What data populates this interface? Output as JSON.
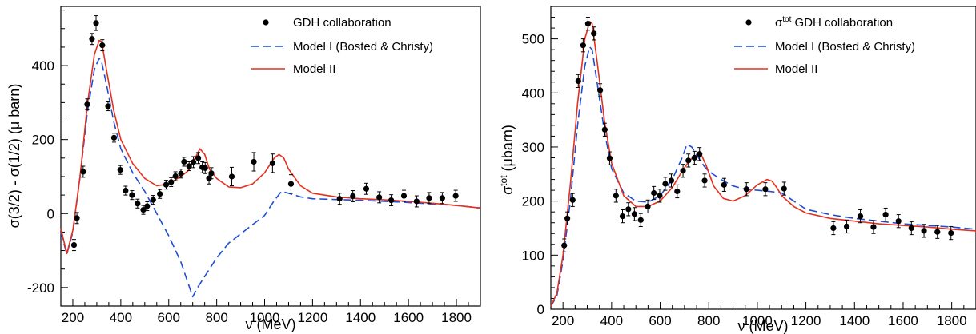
{
  "chart_data": [
    {
      "type": "scatter",
      "title": "",
      "xlabel": "ν (MeV)",
      "ylabel": "σ(3/2) - σ(1/2)  (μ barn)",
      "xlim": [
        150,
        1900
      ],
      "ylim": [
        -250,
        560
      ],
      "xticks": [
        200,
        400,
        600,
        800,
        1000,
        1200,
        1400,
        1600,
        1800
      ],
      "yticks": [
        -200,
        0,
        200,
        400
      ],
      "ytick_labels": [
        "-200",
        "0",
        "200",
        "400"
      ],
      "legend_position": "top-right",
      "points": {
        "name": "GDH collaboration",
        "color": "#000000",
        "x": [
          205,
          217,
          243,
          260,
          280,
          297,
          323,
          347,
          372,
          398,
          420,
          447,
          470,
          494,
          510,
          535,
          563,
          589,
          610,
          628,
          651,
          664,
          685,
          703,
          723,
          740,
          752,
          768,
          778,
          863,
          955,
          1033,
          1110,
          1313,
          1368,
          1424,
          1478,
          1528,
          1581,
          1634,
          1686,
          1741,
          1797
        ],
        "y": [
          -85,
          -12,
          113,
          295,
          472,
          515,
          455,
          290,
          205,
          118,
          62,
          50,
          27,
          10,
          20,
          37,
          53,
          78,
          85,
          101,
          108,
          140,
          128,
          139,
          150,
          125,
          123,
          95,
          109,
          100,
          140,
          136,
          80,
          40,
          47,
          67,
          44,
          36,
          48,
          33,
          42,
          42,
          48
        ],
        "yerr": [
          15,
          15,
          15,
          15,
          15,
          20,
          15,
          12,
          12,
          12,
          12,
          12,
          12,
          12,
          12,
          12,
          12,
          12,
          12,
          12,
          12,
          12,
          12,
          15,
          15,
          15,
          15,
          15,
          15,
          25,
          25,
          25,
          25,
          15,
          15,
          15,
          15,
          15,
          15,
          15,
          15,
          15,
          15
        ]
      },
      "curves": [
        {
          "name": "Model I (Bosted & Christy)",
          "style": "dashed",
          "color": "#1f4fd1",
          "x": [
            150,
            175,
            200,
            230,
            260,
            290,
            310,
            320,
            340,
            370,
            400,
            450,
            500,
            550,
            600,
            650,
            700,
            720,
            760,
            800,
            850,
            900,
            950,
            1000,
            1040,
            1070,
            1100,
            1150,
            1200,
            1300,
            1400,
            1500,
            1600,
            1700,
            1800,
            1900
          ],
          "y": [
            -50,
            -110,
            -50,
            100,
            270,
            390,
            420,
            410,
            350,
            250,
            175,
            110,
            60,
            0,
            -60,
            -130,
            -225,
            -200,
            -160,
            -120,
            -80,
            -55,
            -30,
            -5,
            35,
            60,
            55,
            45,
            40,
            38,
            36,
            33,
            30,
            26,
            22,
            15
          ]
        },
        {
          "name": "Model II",
          "style": "solid",
          "color": "#e3301f",
          "x": [
            150,
            175,
            200,
            230,
            260,
            290,
            310,
            320,
            340,
            370,
            400,
            450,
            500,
            550,
            600,
            650,
            680,
            710,
            730,
            750,
            770,
            800,
            850,
            900,
            950,
            1000,
            1040,
            1060,
            1080,
            1100,
            1150,
            1200,
            1300,
            1400,
            1500,
            1600,
            1700,
            1800,
            1900
          ],
          "y": [
            -40,
            -108,
            -45,
            100,
            290,
            430,
            468,
            465,
            390,
            280,
            200,
            135,
            95,
            75,
            80,
            100,
            115,
            150,
            175,
            160,
            120,
            95,
            72,
            70,
            80,
            110,
            150,
            160,
            150,
            120,
            75,
            55,
            45,
            40,
            37,
            33,
            28,
            22,
            15
          ]
        }
      ]
    },
    {
      "type": "scatter",
      "title": "",
      "xlabel": "ν (MeV)",
      "ylabel": "σtot (μbarn)",
      "xlim": [
        150,
        1900
      ],
      "ylim": [
        0,
        560
      ],
      "xticks": [
        200,
        400,
        600,
        800,
        1000,
        1200,
        1400,
        1600,
        1800
      ],
      "yticks": [
        0,
        100,
        200,
        300,
        400,
        500
      ],
      "ytick_labels": [
        "0",
        "100",
        "200",
        "300",
        "400",
        "500"
      ],
      "legend_position": "top-right",
      "points": {
        "name": "σtot GDH collaboration",
        "color": "#000000",
        "x": [
          205,
          218,
          240,
          263,
          283,
          303,
          327,
          353,
          372,
          392,
          418,
          445,
          469,
          494,
          520,
          549,
          574,
          598,
          621,
          646,
          670,
          694,
          716,
          741,
          762,
          783,
          863,
          955,
          1033,
          1110,
          1313,
          1368,
          1424,
          1478,
          1528,
          1581,
          1634,
          1686,
          1741,
          1797
        ],
        "y": [
          118,
          168,
          202,
          422,
          488,
          528,
          510,
          405,
          332,
          279,
          210,
          172,
          185,
          176,
          165,
          190,
          215,
          210,
          232,
          238,
          218,
          256,
          275,
          280,
          287,
          238,
          230,
          222,
          222,
          223,
          150,
          153,
          172,
          152,
          175,
          163,
          150,
          145,
          143,
          141
        ]
      },
      "curves": [
        {
          "name": "Model I (Bosted & Christy)",
          "style": "dashed",
          "color": "#1f4fd1",
          "x": [
            150,
            175,
            200,
            230,
            260,
            290,
            310,
            320,
            340,
            370,
            400,
            450,
            500,
            550,
            600,
            650,
            690,
            710,
            730,
            750,
            780,
            800,
            850,
            900,
            950,
            1000,
            1050,
            1100,
            1150,
            1200,
            1300,
            1400,
            1500,
            1600,
            1700,
            1800,
            1900
          ],
          "y": [
            5,
            25,
            90,
            200,
            340,
            450,
            485,
            480,
            420,
            330,
            260,
            215,
            200,
            198,
            210,
            240,
            280,
            305,
            300,
            285,
            265,
            255,
            240,
            228,
            222,
            220,
            218,
            215,
            200,
            185,
            175,
            168,
            163,
            158,
            155,
            152,
            148
          ]
        },
        {
          "name": "Model II",
          "style": "solid",
          "color": "#e3301f",
          "x": [
            150,
            175,
            200,
            230,
            260,
            290,
            310,
            320,
            340,
            370,
            400,
            450,
            500,
            550,
            600,
            650,
            690,
            720,
            750,
            770,
            790,
            820,
            860,
            900,
            950,
            1000,
            1040,
            1060,
            1080,
            1100,
            1150,
            1200,
            1300,
            1400,
            1500,
            1600,
            1700,
            1800,
            1900
          ],
          "y": [
            5,
            30,
            100,
            230,
            380,
            500,
            532,
            528,
            460,
            350,
            270,
            210,
            190,
            190,
            200,
            225,
            255,
            275,
            285,
            285,
            265,
            228,
            205,
            200,
            210,
            230,
            240,
            237,
            225,
            210,
            190,
            178,
            168,
            163,
            158,
            155,
            152,
            148,
            145
          ]
        }
      ]
    }
  ],
  "legends": [
    {
      "points_label": "GDH collaboration",
      "model1_label": "Model I (Bosted & Christy)",
      "model2_label": "Model II"
    },
    {
      "points_label": "σtot GDH collaboration",
      "model1_label": "Model I (Bosted & Christy)",
      "model2_label": "Model II"
    }
  ],
  "axis_text": {
    "left_xlabel": "ν (MeV)",
    "left_ylabel": "σ(3/2) - σ(1/2)  (μ barn)",
    "right_xlabel": "ν (MeV)",
    "right_ylabel_main": "σ",
    "right_ylabel_sup": "tot",
    "right_ylabel_rest": " (μbarn)",
    "right_legend_sigma": "σ",
    "right_legend_sup": "tot",
    "right_legend_rest": " GDH collaboration"
  }
}
